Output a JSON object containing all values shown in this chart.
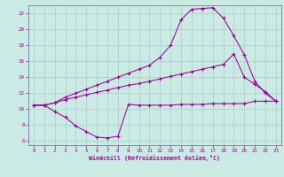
{
  "xlabel": "Windchill (Refroidissement éolien,°C)",
  "bg_color": "#cceae4",
  "grid_color": "#aacccc",
  "line_color": "#990099",
  "spine_color": "#7777aa",
  "xlim": [
    -0.5,
    23.5
  ],
  "ylim": [
    5.5,
    23.0
  ],
  "xticks": [
    0,
    1,
    2,
    3,
    4,
    5,
    6,
    7,
    8,
    9,
    10,
    11,
    12,
    13,
    14,
    15,
    16,
    17,
    18,
    19,
    20,
    21,
    22,
    23
  ],
  "yticks": [
    6,
    8,
    10,
    12,
    14,
    16,
    18,
    20,
    22
  ],
  "line1_x": [
    0,
    1,
    2,
    3,
    4,
    5,
    6,
    7,
    8,
    9,
    10,
    11,
    12,
    13,
    14,
    15,
    16,
    17,
    18,
    19,
    20,
    21,
    22,
    23
  ],
  "line1_y": [
    10.5,
    10.5,
    9.7,
    9.0,
    7.9,
    7.2,
    6.5,
    6.4,
    6.6,
    10.6,
    10.5,
    10.5,
    10.5,
    10.5,
    10.6,
    10.6,
    10.6,
    10.7,
    10.7,
    10.7,
    10.7,
    11.0,
    11.0,
    11.0
  ],
  "line2_x": [
    0,
    1,
    2,
    3,
    4,
    5,
    6,
    7,
    8,
    9,
    10,
    11,
    12,
    13,
    14,
    15,
    16,
    17,
    18,
    19,
    20,
    21,
    22,
    23
  ],
  "line2_y": [
    10.5,
    10.5,
    10.8,
    11.2,
    11.5,
    11.8,
    12.1,
    12.4,
    12.7,
    13.0,
    13.2,
    13.5,
    13.8,
    14.1,
    14.4,
    14.7,
    15.0,
    15.3,
    15.6,
    16.9,
    14.0,
    13.1,
    12.2,
    11.0
  ],
  "line3_x": [
    0,
    1,
    2,
    3,
    4,
    5,
    6,
    7,
    8,
    9,
    10,
    11,
    12,
    13,
    14,
    15,
    16,
    17,
    18,
    19,
    20,
    21,
    22,
    23
  ],
  "line3_y": [
    10.5,
    10.5,
    10.8,
    11.5,
    12.0,
    12.5,
    13.0,
    13.5,
    14.0,
    14.5,
    15.0,
    15.5,
    16.5,
    18.0,
    21.2,
    22.5,
    22.6,
    22.7,
    21.4,
    19.2,
    16.8,
    13.5,
    12.0,
    11.0
  ]
}
